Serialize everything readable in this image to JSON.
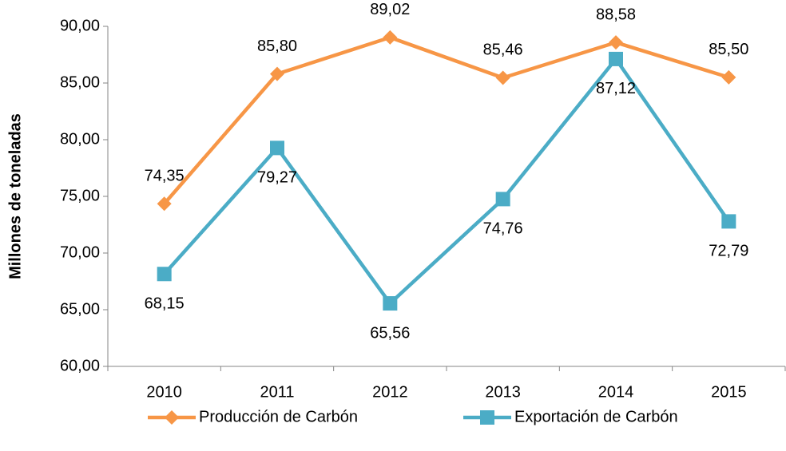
{
  "chart_data": {
    "type": "line",
    "ylabel": "Millones de toneladas",
    "categories": [
      "2010",
      "2011",
      "2012",
      "2013",
      "2014",
      "2015"
    ],
    "series": [
      {
        "name": "Producción de Carbón",
        "color": "#f79646",
        "marker": "diamond",
        "values": [
          74.35,
          85.8,
          89.02,
          85.46,
          88.58,
          85.5
        ],
        "value_labels": [
          "74,35",
          "85,80",
          "89,02",
          "85,46",
          "88,58",
          "85,50"
        ]
      },
      {
        "name": "Exportación de Carbón",
        "color": "#4bacc6",
        "marker": "square",
        "values": [
          68.15,
          79.27,
          65.56,
          74.76,
          87.12,
          72.79
        ],
        "value_labels": [
          "68,15",
          "79,27",
          "65,56",
          "74,76",
          "87,12",
          "72,79"
        ]
      }
    ],
    "ylim": [
      60,
      90
    ],
    "yticks": [
      {
        "value": 60,
        "label": "60,00"
      },
      {
        "value": 65,
        "label": "65,00"
      },
      {
        "value": 70,
        "label": "70,00"
      },
      {
        "value": 75,
        "label": "75,00"
      },
      {
        "value": 80,
        "label": "80,00"
      },
      {
        "value": 85,
        "label": "85,00"
      },
      {
        "value": 90,
        "label": "90,00"
      }
    ],
    "grid": false,
    "legend": "bottom"
  }
}
